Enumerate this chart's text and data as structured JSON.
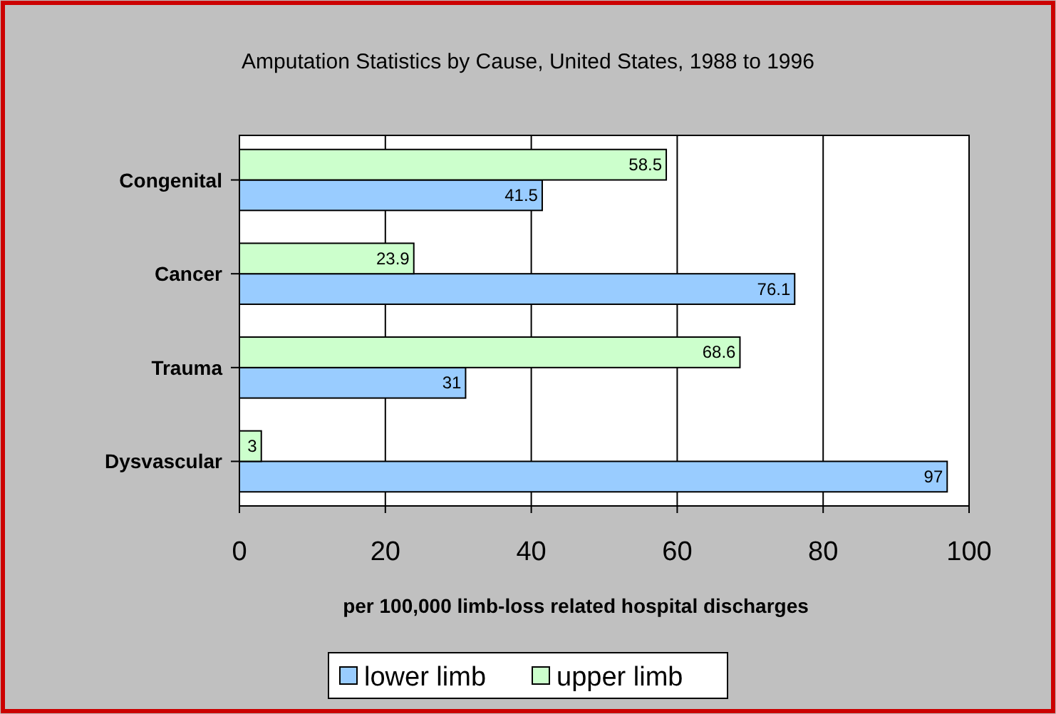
{
  "chart_data": {
    "type": "bar",
    "orientation": "horizontal",
    "title": "Amputation Statistics by Cause, United States, 1988 to 1996",
    "xlabel": "per 100,000 limb-loss related hospital discharges",
    "categories": [
      "Congenital",
      "Cancer",
      "Trauma",
      "Dysvascular"
    ],
    "series": [
      {
        "name": "lower limb",
        "color": "#99ccff",
        "values": [
          41.5,
          76.1,
          31,
          97
        ]
      },
      {
        "name": "upper limb",
        "color": "#ccffcc",
        "values": [
          58.5,
          23.9,
          68.6,
          3
        ]
      }
    ],
    "xlim": [
      0,
      100
    ],
    "xticks": [
      0,
      20,
      40,
      60,
      80,
      100
    ],
    "grid": "x",
    "legend": "bottom",
    "data_labels": true
  }
}
